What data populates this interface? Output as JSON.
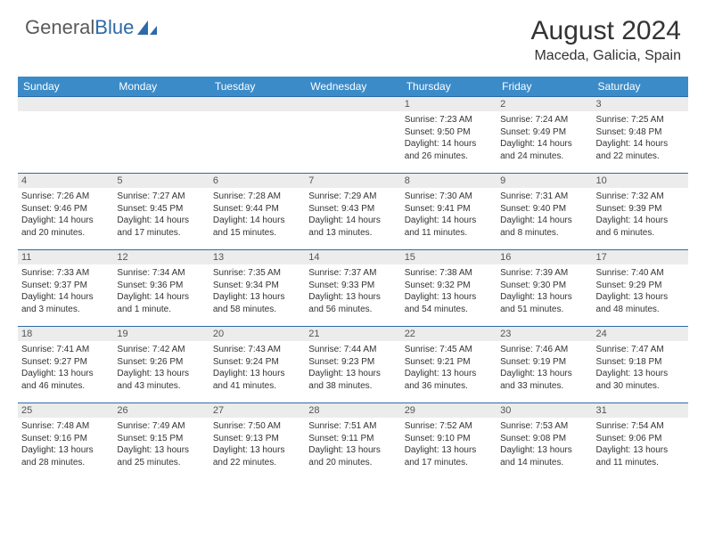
{
  "brand": {
    "word1": "General",
    "word2": "Blue"
  },
  "header": {
    "month_title": "August 2024",
    "location": "Maceda, Galicia, Spain"
  },
  "colors": {
    "header_bg": "#3b8bc8",
    "header_text": "#ffffff",
    "row_border": "#2d6aa8",
    "daystrip_bg": "#ececec",
    "logo_blue": "#2d6aa8",
    "logo_gray": "#5a5a5a"
  },
  "weekdays": [
    "Sunday",
    "Monday",
    "Tuesday",
    "Wednesday",
    "Thursday",
    "Friday",
    "Saturday"
  ],
  "weeks": [
    [
      {
        "n": "",
        "l1": "",
        "l2": "",
        "l3": "",
        "l4": ""
      },
      {
        "n": "",
        "l1": "",
        "l2": "",
        "l3": "",
        "l4": ""
      },
      {
        "n": "",
        "l1": "",
        "l2": "",
        "l3": "",
        "l4": ""
      },
      {
        "n": "",
        "l1": "",
        "l2": "",
        "l3": "",
        "l4": ""
      },
      {
        "n": "1",
        "l1": "Sunrise: 7:23 AM",
        "l2": "Sunset: 9:50 PM",
        "l3": "Daylight: 14 hours",
        "l4": "and 26 minutes."
      },
      {
        "n": "2",
        "l1": "Sunrise: 7:24 AM",
        "l2": "Sunset: 9:49 PM",
        "l3": "Daylight: 14 hours",
        "l4": "and 24 minutes."
      },
      {
        "n": "3",
        "l1": "Sunrise: 7:25 AM",
        "l2": "Sunset: 9:48 PM",
        "l3": "Daylight: 14 hours",
        "l4": "and 22 minutes."
      }
    ],
    [
      {
        "n": "4",
        "l1": "Sunrise: 7:26 AM",
        "l2": "Sunset: 9:46 PM",
        "l3": "Daylight: 14 hours",
        "l4": "and 20 minutes."
      },
      {
        "n": "5",
        "l1": "Sunrise: 7:27 AM",
        "l2": "Sunset: 9:45 PM",
        "l3": "Daylight: 14 hours",
        "l4": "and 17 minutes."
      },
      {
        "n": "6",
        "l1": "Sunrise: 7:28 AM",
        "l2": "Sunset: 9:44 PM",
        "l3": "Daylight: 14 hours",
        "l4": "and 15 minutes."
      },
      {
        "n": "7",
        "l1": "Sunrise: 7:29 AM",
        "l2": "Sunset: 9:43 PM",
        "l3": "Daylight: 14 hours",
        "l4": "and 13 minutes."
      },
      {
        "n": "8",
        "l1": "Sunrise: 7:30 AM",
        "l2": "Sunset: 9:41 PM",
        "l3": "Daylight: 14 hours",
        "l4": "and 11 minutes."
      },
      {
        "n": "9",
        "l1": "Sunrise: 7:31 AM",
        "l2": "Sunset: 9:40 PM",
        "l3": "Daylight: 14 hours",
        "l4": "and 8 minutes."
      },
      {
        "n": "10",
        "l1": "Sunrise: 7:32 AM",
        "l2": "Sunset: 9:39 PM",
        "l3": "Daylight: 14 hours",
        "l4": "and 6 minutes."
      }
    ],
    [
      {
        "n": "11",
        "l1": "Sunrise: 7:33 AM",
        "l2": "Sunset: 9:37 PM",
        "l3": "Daylight: 14 hours",
        "l4": "and 3 minutes."
      },
      {
        "n": "12",
        "l1": "Sunrise: 7:34 AM",
        "l2": "Sunset: 9:36 PM",
        "l3": "Daylight: 14 hours",
        "l4": "and 1 minute."
      },
      {
        "n": "13",
        "l1": "Sunrise: 7:35 AM",
        "l2": "Sunset: 9:34 PM",
        "l3": "Daylight: 13 hours",
        "l4": "and 58 minutes."
      },
      {
        "n": "14",
        "l1": "Sunrise: 7:37 AM",
        "l2": "Sunset: 9:33 PM",
        "l3": "Daylight: 13 hours",
        "l4": "and 56 minutes."
      },
      {
        "n": "15",
        "l1": "Sunrise: 7:38 AM",
        "l2": "Sunset: 9:32 PM",
        "l3": "Daylight: 13 hours",
        "l4": "and 54 minutes."
      },
      {
        "n": "16",
        "l1": "Sunrise: 7:39 AM",
        "l2": "Sunset: 9:30 PM",
        "l3": "Daylight: 13 hours",
        "l4": "and 51 minutes."
      },
      {
        "n": "17",
        "l1": "Sunrise: 7:40 AM",
        "l2": "Sunset: 9:29 PM",
        "l3": "Daylight: 13 hours",
        "l4": "and 48 minutes."
      }
    ],
    [
      {
        "n": "18",
        "l1": "Sunrise: 7:41 AM",
        "l2": "Sunset: 9:27 PM",
        "l3": "Daylight: 13 hours",
        "l4": "and 46 minutes."
      },
      {
        "n": "19",
        "l1": "Sunrise: 7:42 AM",
        "l2": "Sunset: 9:26 PM",
        "l3": "Daylight: 13 hours",
        "l4": "and 43 minutes."
      },
      {
        "n": "20",
        "l1": "Sunrise: 7:43 AM",
        "l2": "Sunset: 9:24 PM",
        "l3": "Daylight: 13 hours",
        "l4": "and 41 minutes."
      },
      {
        "n": "21",
        "l1": "Sunrise: 7:44 AM",
        "l2": "Sunset: 9:23 PM",
        "l3": "Daylight: 13 hours",
        "l4": "and 38 minutes."
      },
      {
        "n": "22",
        "l1": "Sunrise: 7:45 AM",
        "l2": "Sunset: 9:21 PM",
        "l3": "Daylight: 13 hours",
        "l4": "and 36 minutes."
      },
      {
        "n": "23",
        "l1": "Sunrise: 7:46 AM",
        "l2": "Sunset: 9:19 PM",
        "l3": "Daylight: 13 hours",
        "l4": "and 33 minutes."
      },
      {
        "n": "24",
        "l1": "Sunrise: 7:47 AM",
        "l2": "Sunset: 9:18 PM",
        "l3": "Daylight: 13 hours",
        "l4": "and 30 minutes."
      }
    ],
    [
      {
        "n": "25",
        "l1": "Sunrise: 7:48 AM",
        "l2": "Sunset: 9:16 PM",
        "l3": "Daylight: 13 hours",
        "l4": "and 28 minutes."
      },
      {
        "n": "26",
        "l1": "Sunrise: 7:49 AM",
        "l2": "Sunset: 9:15 PM",
        "l3": "Daylight: 13 hours",
        "l4": "and 25 minutes."
      },
      {
        "n": "27",
        "l1": "Sunrise: 7:50 AM",
        "l2": "Sunset: 9:13 PM",
        "l3": "Daylight: 13 hours",
        "l4": "and 22 minutes."
      },
      {
        "n": "28",
        "l1": "Sunrise: 7:51 AM",
        "l2": "Sunset: 9:11 PM",
        "l3": "Daylight: 13 hours",
        "l4": "and 20 minutes."
      },
      {
        "n": "29",
        "l1": "Sunrise: 7:52 AM",
        "l2": "Sunset: 9:10 PM",
        "l3": "Daylight: 13 hours",
        "l4": "and 17 minutes."
      },
      {
        "n": "30",
        "l1": "Sunrise: 7:53 AM",
        "l2": "Sunset: 9:08 PM",
        "l3": "Daylight: 13 hours",
        "l4": "and 14 minutes."
      },
      {
        "n": "31",
        "l1": "Sunrise: 7:54 AM",
        "l2": "Sunset: 9:06 PM",
        "l3": "Daylight: 13 hours",
        "l4": "and 11 minutes."
      }
    ]
  ]
}
